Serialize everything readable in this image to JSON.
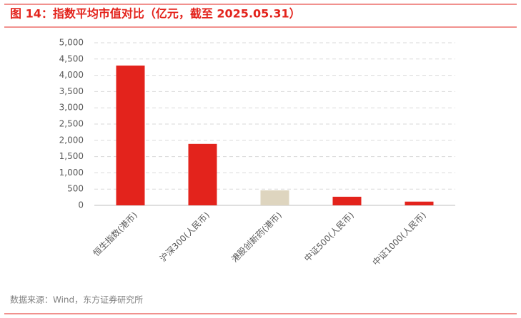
{
  "chart_data": {
    "type": "bar",
    "title": "图 14：指数平均市值对比（亿元，截至 2025.05.31）",
    "source": "数据来源：Wind，东方证券研究所",
    "categories": [
      "恒生指数(港币)",
      "沪深300(人民币)",
      "港股创新药(港币)",
      "中证500(人民币)",
      "中证1000(人民币)"
    ],
    "values": [
      4300,
      1890,
      460,
      265,
      115
    ],
    "colors": [
      "#e3231c",
      "#e3231c",
      "#ded5bf",
      "#e3231c",
      "#e3231c"
    ],
    "ylim": [
      0,
      5000
    ],
    "yticks": [
      0,
      500,
      {
        "value": 1000,
        "label": "1,000"
      },
      {
        "value": 1500,
        "label": "1,500"
      },
      {
        "value": 2000,
        "label": "2,000"
      },
      {
        "value": 2500,
        "label": "2,500"
      },
      {
        "value": 3000,
        "label": "3,000"
      },
      {
        "value": 3500,
        "label": "3,500"
      },
      {
        "value": 4000,
        "label": "4,000"
      },
      {
        "value": 4500,
        "label": "4,500"
      },
      {
        "value": 5000,
        "label": "5,000"
      }
    ],
    "grid": true
  }
}
